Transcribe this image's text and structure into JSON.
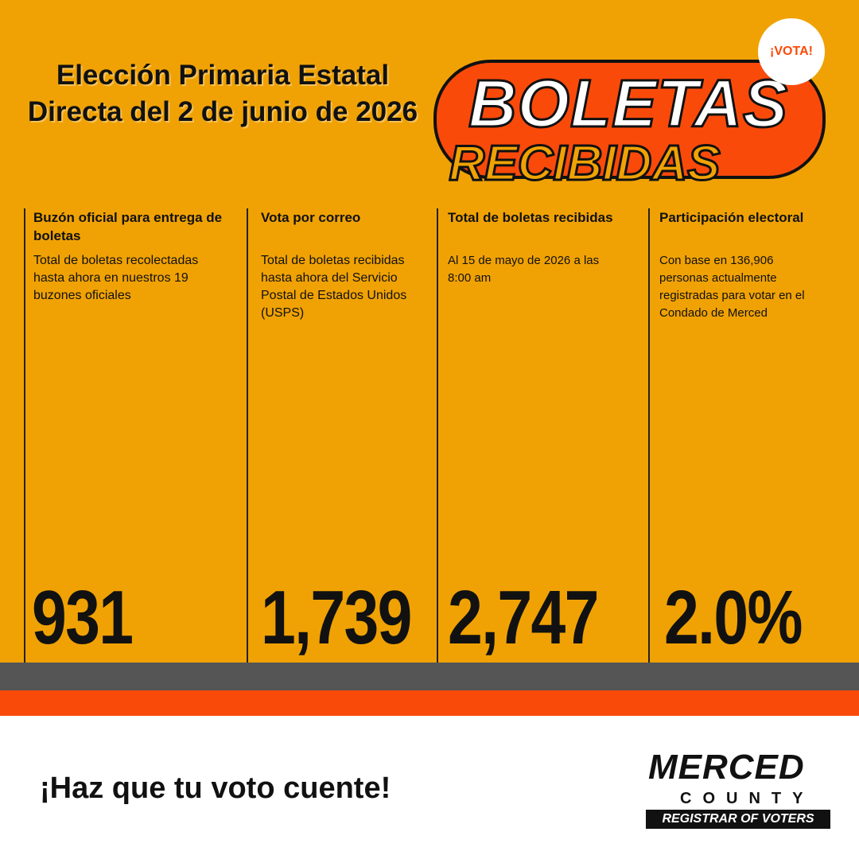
{
  "header": {
    "title": "Elección Primaria Estatal Directa del 2 de junio de 2026"
  },
  "badge": "¡VOTA!",
  "banner": {
    "line1": "BOLETAS",
    "line2": "RECIBIDAS"
  },
  "columns": [
    {
      "heading": "Buzón oficial para entrega de boletas",
      "description": "Total de boletas recolectadas hasta ahora en nuestros 19 buzones oficiales",
      "value": "931"
    },
    {
      "heading": "Vota por correo",
      "description": "Total de boletas recibidas hasta ahora del Servicio Postal de Estados Unidos (USPS)",
      "value": "1,739"
    },
    {
      "heading": "Total de boletas recibidas",
      "description": "Al 15 de mayo de 2026 a las 8:00 am",
      "value": "2,747"
    },
    {
      "heading": "Participación electoral",
      "description": "Con base en 136,906 personas actualmente registradas para votar en el Condado de Merced",
      "value": "2.0%"
    }
  ],
  "footer": {
    "slogan": "¡Haz que tu voto cuente!"
  },
  "logo": {
    "name": "MERCED",
    "county": "COUNTY",
    "office": "REGISTRAR OF VOTERS"
  }
}
